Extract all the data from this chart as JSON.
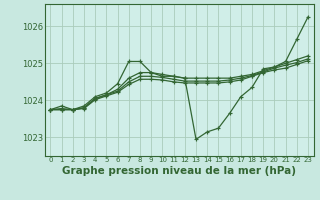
{
  "background_color": "#c8e8e0",
  "plot_bg_color": "#d0eee8",
  "grid_color": "#aaccbb",
  "line_color": "#336633",
  "xlabel": "Graphe pression niveau de la mer (hPa)",
  "xlabel_fontsize": 7.5,
  "xlim": [
    -0.5,
    23.5
  ],
  "ylim": [
    1022.5,
    1026.6
  ],
  "yticks": [
    1023,
    1024,
    1025,
    1026
  ],
  "x_ticks": [
    0,
    1,
    2,
    3,
    4,
    5,
    6,
    7,
    8,
    9,
    10,
    11,
    12,
    13,
    14,
    15,
    16,
    17,
    18,
    19,
    20,
    21,
    22,
    23
  ],
  "series": [
    [
      1023.75,
      1023.85,
      1023.75,
      1023.85,
      1024.1,
      1024.2,
      1024.45,
      1025.05,
      1025.05,
      1024.75,
      1024.65,
      1024.65,
      1024.6,
      1022.95,
      1023.15,
      1023.25,
      1023.65,
      1024.1,
      1024.35,
      1024.85,
      1024.9,
      1025.05,
      1025.65,
      1026.25
    ],
    [
      1023.75,
      1023.75,
      1023.75,
      1023.8,
      1024.05,
      1024.15,
      1024.3,
      1024.6,
      1024.75,
      1024.75,
      1024.7,
      1024.65,
      1024.6,
      1024.6,
      1024.6,
      1024.6,
      1024.6,
      1024.65,
      1024.7,
      1024.8,
      1024.9,
      1025.0,
      1025.1,
      1025.2
    ],
    [
      1023.75,
      1023.75,
      1023.75,
      1023.8,
      1024.05,
      1024.15,
      1024.25,
      1024.5,
      1024.65,
      1024.65,
      1024.62,
      1024.57,
      1024.52,
      1024.52,
      1024.52,
      1024.52,
      1024.55,
      1024.6,
      1024.67,
      1024.77,
      1024.87,
      1024.95,
      1025.02,
      1025.12
    ],
    [
      1023.75,
      1023.78,
      1023.75,
      1023.78,
      1024.02,
      1024.12,
      1024.22,
      1024.43,
      1024.57,
      1024.57,
      1024.55,
      1024.5,
      1024.47,
      1024.47,
      1024.47,
      1024.47,
      1024.5,
      1024.55,
      1024.65,
      1024.75,
      1024.82,
      1024.87,
      1024.97,
      1025.07
    ]
  ]
}
